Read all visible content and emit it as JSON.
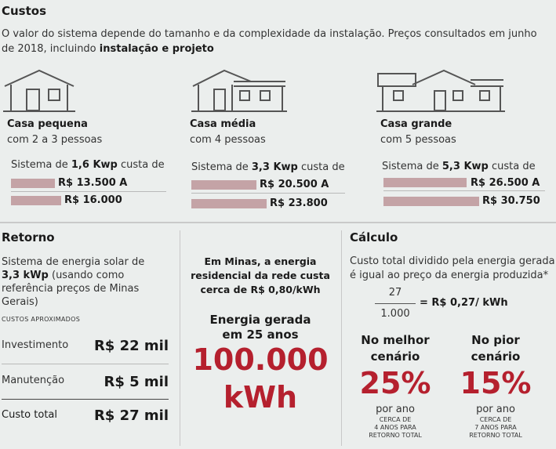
{
  "header": {
    "title": "Custos",
    "intro_text": "O valor do sistema depende do tamanho e da complexidade da instalação. Preços consultados em junho de 2018, incluindo ",
    "intro_bold": "instalação e projeto"
  },
  "houses": [
    {
      "title": "Casa pequena",
      "sub": "com 2 a 3 pessoas",
      "sys_prefix": "Sistema de ",
      "sys_bold": "1,6 Kwp",
      "sys_suffix": " custa de",
      "price_a": "R$ 13.500 A",
      "price_b": "R$ 16.000"
    },
    {
      "title": "Casa média",
      "sub": "com 4 pessoas",
      "sys_prefix": "Sistema de ",
      "sys_bold": "3,3 Kwp",
      "sys_suffix": " custa de",
      "price_a": "R$ 20.500 A",
      "price_b": "R$ 23.800"
    },
    {
      "title": "Casa grande",
      "sub": "com 5 pessoas",
      "sys_prefix": "Sistema de ",
      "sys_bold": "5,3 Kwp",
      "sys_suffix": " custa de",
      "price_a": "R$ 26.500 A",
      "price_b": "R$ 30.750"
    }
  ],
  "retorno": {
    "title": "Retorno",
    "text_a": "Sistema de energia solar de",
    "text_bold": "3,3 kWp",
    "text_b": " (usando como",
    "text_c": "referência preços de Minas",
    "text_d": "Gerais)",
    "caps": "CUSTOS APROXIMADOS",
    "rows": [
      {
        "label": "Investimento",
        "value": "R$ 22 mil"
      },
      {
        "label": "Manutenção",
        "value": "R$ 5 mil"
      },
      {
        "label": "Custo total",
        "value": "R$ 27 mil"
      }
    ]
  },
  "middle": {
    "line1": "Em Minas, a energia",
    "line2": "residencial da rede custa",
    "line3": "cerca de R$ 0,80/kWh",
    "gen1": "Energia gerada",
    "gen2": "em 25 anos",
    "big1": "100.000",
    "big2": "kWh"
  },
  "calculo": {
    "title": "Cálculo",
    "text1": "Custo total dividido pela energia gerada",
    "text2": "é igual ao preço da energia produzida*",
    "numerator": "27",
    "denominator": "1.000",
    "result": "= R$ 0,27/ kWh",
    "scenarios": [
      {
        "title1": "No melhor",
        "title2": "cenário",
        "pct": "25%",
        "por": "por ano",
        "n1": "CERCA DE",
        "n2": "4 ANOS PARA",
        "n3": "RETORNO TOTAL"
      },
      {
        "title1": "No pior",
        "title2": "cenário",
        "pct": "15%",
        "por": "por ano",
        "n1": "CERCA DE",
        "n2": "7 ANOS PARA",
        "n3": "RETORNO TOTAL"
      }
    ]
  },
  "colors": {
    "accent_red": "#b5202e",
    "bar": "#c4a3a6",
    "background": "#ebeeed"
  }
}
